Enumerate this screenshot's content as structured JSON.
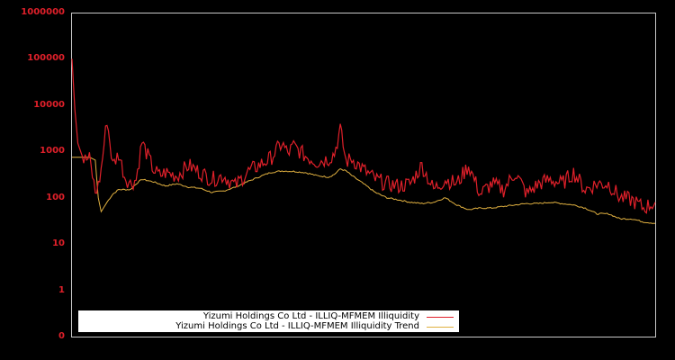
{
  "chart_data": {
    "type": "line",
    "title": "",
    "xlabel": "",
    "ylabel": "",
    "yscale": "log",
    "ylim": [
      0.1,
      1000000
    ],
    "y_ticks": [
      "1000000",
      "100000",
      "10000",
      "1000",
      "100",
      "10",
      "1",
      "0"
    ],
    "grid": false,
    "legend_position": "bottom-left",
    "series": [
      {
        "name": "Yizumi Holdings Co Ltd - ILLIQ-MFMEM Illiquidity",
        "color": "#e0202a",
        "x": [
          0,
          0.005,
          0.01,
          0.02,
          0.03,
          0.04,
          0.045,
          0.05,
          0.06,
          0.07,
          0.08,
          0.09,
          0.1,
          0.11,
          0.12,
          0.13,
          0.14,
          0.15,
          0.16,
          0.18,
          0.2,
          0.22,
          0.24,
          0.26,
          0.28,
          0.3,
          0.32,
          0.34,
          0.36,
          0.37,
          0.38,
          0.4,
          0.42,
          0.44,
          0.45,
          0.46,
          0.47,
          0.48,
          0.5,
          0.52,
          0.54,
          0.56,
          0.58,
          0.6,
          0.62,
          0.64,
          0.66,
          0.68,
          0.7,
          0.72,
          0.74,
          0.76,
          0.78,
          0.8,
          0.82,
          0.84,
          0.86,
          0.88,
          0.9,
          0.92,
          0.94,
          0.96,
          0.98,
          1.0
        ],
        "values": [
          100000,
          8000,
          1500,
          650,
          700,
          130,
          180,
          400,
          5000,
          500,
          900,
          300,
          200,
          250,
          1600,
          800,
          400,
          300,
          350,
          300,
          500,
          350,
          250,
          300,
          180,
          350,
          500,
          700,
          1500,
          900,
          1300,
          800,
          600,
          700,
          900,
          3000,
          600,
          700,
          400,
          250,
          200,
          180,
          200,
          500,
          150,
          250,
          200,
          500,
          120,
          200,
          150,
          350,
          120,
          200,
          250,
          200,
          350,
          150,
          200,
          200,
          100,
          90,
          60,
          80
        ]
      },
      {
        "name": "Yizumi Holdings Co Ltd - ILLIQ-MFMEM Illiquidity Trend",
        "color": "#e0b040",
        "x": [
          0,
          0.02,
          0.03,
          0.04,
          0.045,
          0.05,
          0.06,
          0.07,
          0.08,
          0.1,
          0.11,
          0.12,
          0.14,
          0.16,
          0.18,
          0.2,
          0.22,
          0.24,
          0.26,
          0.28,
          0.3,
          0.32,
          0.34,
          0.36,
          0.38,
          0.4,
          0.42,
          0.44,
          0.45,
          0.46,
          0.47,
          0.48,
          0.5,
          0.52,
          0.54,
          0.56,
          0.58,
          0.6,
          0.62,
          0.64,
          0.66,
          0.68,
          0.7,
          0.72,
          0.74,
          0.76,
          0.78,
          0.8,
          0.82,
          0.84,
          0.86,
          0.88,
          0.9,
          0.92,
          0.94,
          0.96,
          0.98,
          1.0
        ],
        "values": [
          750,
          750,
          750,
          650,
          100,
          50,
          80,
          120,
          150,
          150,
          200,
          250,
          220,
          180,
          200,
          170,
          160,
          130,
          140,
          170,
          220,
          280,
          350,
          380,
          370,
          350,
          300,
          280,
          320,
          420,
          380,
          300,
          200,
          130,
          100,
          90,
          80,
          75,
          80,
          100,
          70,
          55,
          60,
          60,
          65,
          70,
          75,
          75,
          80,
          75,
          70,
          60,
          45,
          45,
          35,
          35,
          30,
          28
        ]
      }
    ]
  },
  "legend": {
    "items": [
      {
        "label": "Yizumi Holdings Co Ltd - ILLIQ-MFMEM Illiquidity",
        "color": "#e0202a"
      },
      {
        "label": "Yizumi Holdings Co Ltd - ILLIQ-MFMEM Illiquidity Trend",
        "color": "#e0b040"
      }
    ]
  },
  "colors": {
    "background": "#000000",
    "frame": "#c8c8c8",
    "tick_label": "#e0202a"
  }
}
